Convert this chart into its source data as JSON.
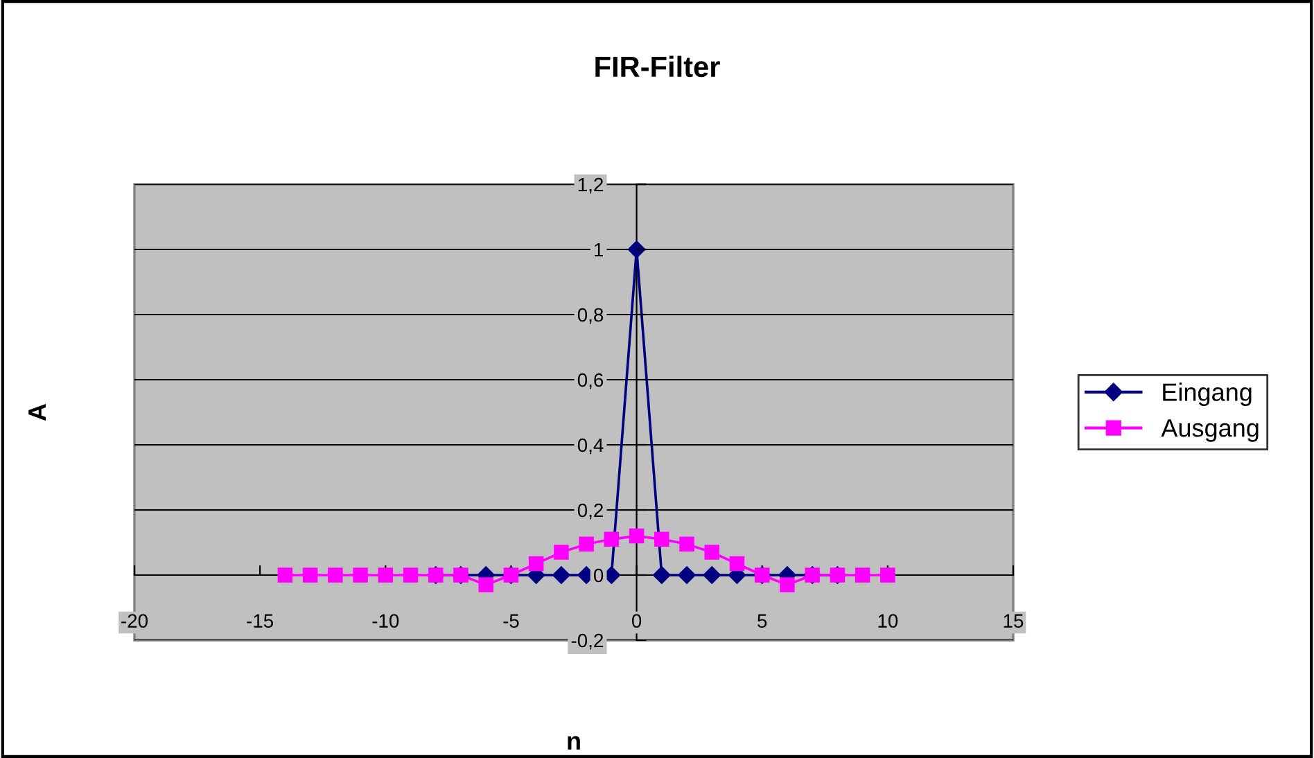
{
  "chart_data": {
    "type": "line",
    "title": "FIR-Filter",
    "xlabel": "n",
    "ylabel": "A",
    "x": [
      -14,
      -13,
      -12,
      -11,
      -10,
      -9,
      -8,
      -7,
      -6,
      -5,
      -4,
      -3,
      -2,
      -1,
      0,
      1,
      2,
      3,
      4,
      5,
      6,
      7,
      8,
      9,
      10
    ],
    "series": [
      {
        "name": "Eingang",
        "color": "#000080",
        "marker": "diamond",
        "values": [
          null,
          null,
          null,
          null,
          null,
          null,
          0,
          0,
          0,
          0,
          0,
          0,
          0,
          0,
          1,
          0,
          0,
          0,
          0,
          0,
          0,
          0,
          0,
          null,
          null
        ]
      },
      {
        "name": "Ausgang",
        "color": "#ff00ff",
        "marker": "square",
        "values": [
          0,
          0,
          0,
          0,
          0,
          0,
          0,
          0,
          -0.03,
          0,
          0.035,
          0.07,
          0.095,
          0.11,
          0.12,
          0.11,
          0.095,
          0.07,
          0.035,
          0,
          -0.03,
          0,
          0,
          0,
          0
        ]
      }
    ],
    "xlim": [
      -20,
      15
    ],
    "xticks": [
      -20,
      -15,
      -10,
      -5,
      0,
      5,
      10,
      15
    ],
    "ylim": [
      -0.2,
      1.2
    ],
    "yticks": [
      {
        "value": -0.2,
        "label": "-0,2"
      },
      0,
      {
        "value": 0.2,
        "label": "0,2"
      },
      {
        "value": 0.4,
        "label": "0,4"
      },
      {
        "value": 0.6,
        "label": "0,6"
      },
      {
        "value": 0.8,
        "label": "0,8"
      },
      1,
      {
        "value": 1.2,
        "label": "1,2"
      }
    ],
    "grid": "y",
    "legend": "right",
    "line_style": "solid"
  }
}
